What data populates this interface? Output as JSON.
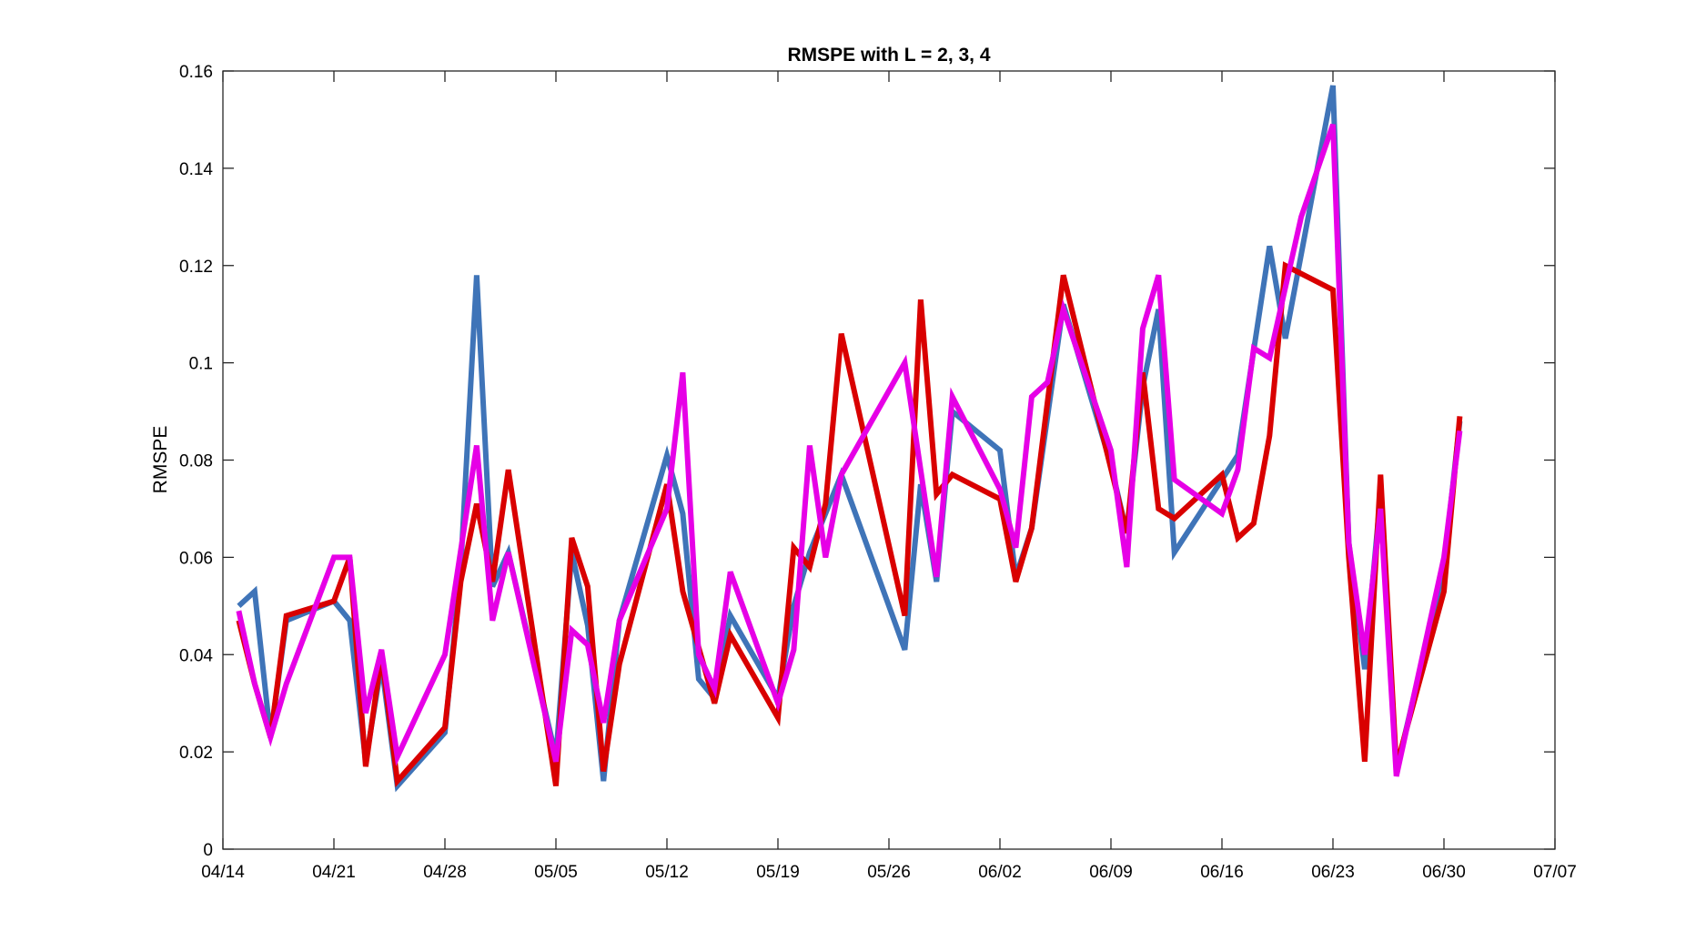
{
  "chart_data": {
    "type": "line",
    "title": "RMSPE with L = 2, 3, 4",
    "xlabel": "",
    "ylabel": "RMSPE",
    "x_domain": [
      "2020-04-14",
      "2020-07-07"
    ],
    "ylim": [
      0,
      0.16
    ],
    "x_tick_labels": [
      "04/14",
      "04/21",
      "04/28",
      "05/05",
      "05/12",
      "05/19",
      "05/26",
      "06/02",
      "06/09",
      "06/16",
      "06/23",
      "06/30",
      "07/07"
    ],
    "y_ticks": [
      0,
      0.02,
      0.04,
      0.06,
      0.08,
      0.1,
      0.12,
      0.14,
      0.16
    ],
    "y_tick_labels": [
      "0",
      "0.02",
      "0.04",
      "0.06",
      "0.08",
      "0.1",
      "0.12",
      "0.14",
      "0.16"
    ],
    "grid": false,
    "legend": "none",
    "series": [
      {
        "color": "#3f74b8",
        "points": [
          [
            "2020-04-15",
            0.05
          ],
          [
            "2020-04-16",
            0.053
          ],
          [
            "2020-04-17",
            0.023
          ],
          [
            "2020-04-18",
            0.047
          ],
          [
            "2020-04-21",
            0.051
          ],
          [
            "2020-04-22",
            0.047
          ],
          [
            "2020-04-23",
            0.018
          ],
          [
            "2020-04-24",
            0.038
          ],
          [
            "2020-04-25",
            0.013
          ],
          [
            "2020-04-28",
            0.024
          ],
          [
            "2020-04-29",
            0.058
          ],
          [
            "2020-04-30",
            0.118
          ],
          [
            "2020-05-01",
            0.054
          ],
          [
            "2020-05-02",
            0.061
          ],
          [
            "2020-05-05",
            0.019
          ],
          [
            "2020-05-06",
            0.061
          ],
          [
            "2020-05-07",
            0.046
          ],
          [
            "2020-05-08",
            0.014
          ],
          [
            "2020-05-09",
            0.047
          ],
          [
            "2020-05-12",
            0.081
          ],
          [
            "2020-05-13",
            0.069
          ],
          [
            "2020-05-14",
            0.035
          ],
          [
            "2020-05-15",
            0.031
          ],
          [
            "2020-05-16",
            0.048
          ],
          [
            "2020-05-19",
            0.031
          ],
          [
            "2020-05-20",
            0.05
          ],
          [
            "2020-05-21",
            0.061
          ],
          [
            "2020-05-23",
            0.077
          ],
          [
            "2020-05-27",
            0.041
          ],
          [
            "2020-05-28",
            0.075
          ],
          [
            "2020-05-29",
            0.055
          ],
          [
            "2020-05-30",
            0.09
          ],
          [
            "2020-06-02",
            0.082
          ],
          [
            "2020-06-03",
            0.056
          ],
          [
            "2020-06-04",
            0.066
          ],
          [
            "2020-06-06",
            0.112
          ],
          [
            "2020-06-09",
            0.079
          ],
          [
            "2020-06-10",
            0.065
          ],
          [
            "2020-06-11",
            0.095
          ],
          [
            "2020-06-12",
            0.111
          ],
          [
            "2020-06-13",
            0.061
          ],
          [
            "2020-06-17",
            0.081
          ],
          [
            "2020-06-19",
            0.124
          ],
          [
            "2020-06-20",
            0.105
          ],
          [
            "2020-06-23",
            0.157
          ],
          [
            "2020-06-24",
            0.063
          ],
          [
            "2020-06-25",
            0.037
          ],
          [
            "2020-06-26",
            0.073
          ],
          [
            "2020-06-27",
            0.016
          ],
          [
            "2020-06-30",
            0.058
          ],
          [
            "2020-07-01",
            0.088
          ]
        ]
      },
      {
        "color": "#d90000",
        "points": [
          [
            "2020-04-15",
            0.047
          ],
          [
            "2020-04-16",
            0.034
          ],
          [
            "2020-04-17",
            0.023
          ],
          [
            "2020-04-18",
            0.048
          ],
          [
            "2020-04-21",
            0.051
          ],
          [
            "2020-04-22",
            0.06
          ],
          [
            "2020-04-23",
            0.017
          ],
          [
            "2020-04-24",
            0.04
          ],
          [
            "2020-04-25",
            0.014
          ],
          [
            "2020-04-28",
            0.025
          ],
          [
            "2020-04-29",
            0.055
          ],
          [
            "2020-04-30",
            0.071
          ],
          [
            "2020-05-01",
            0.055
          ],
          [
            "2020-05-02",
            0.078
          ],
          [
            "2020-05-05",
            0.013
          ],
          [
            "2020-05-06",
            0.064
          ],
          [
            "2020-05-07",
            0.054
          ],
          [
            "2020-05-08",
            0.016
          ],
          [
            "2020-05-09",
            0.038
          ],
          [
            "2020-05-12",
            0.075
          ],
          [
            "2020-05-13",
            0.053
          ],
          [
            "2020-05-15",
            0.03
          ],
          [
            "2020-05-16",
            0.044
          ],
          [
            "2020-05-19",
            0.027
          ],
          [
            "2020-05-20",
            0.062
          ],
          [
            "2020-05-21",
            0.058
          ],
          [
            "2020-05-22",
            0.071
          ],
          [
            "2020-05-23",
            0.106
          ],
          [
            "2020-05-27",
            0.048
          ],
          [
            "2020-05-28",
            0.113
          ],
          [
            "2020-05-29",
            0.073
          ],
          [
            "2020-05-30",
            0.077
          ],
          [
            "2020-06-02",
            0.072
          ],
          [
            "2020-06-03",
            0.055
          ],
          [
            "2020-06-04",
            0.066
          ],
          [
            "2020-06-06",
            0.118
          ],
          [
            "2020-06-10",
            0.065
          ],
          [
            "2020-06-11",
            0.098
          ],
          [
            "2020-06-12",
            0.07
          ],
          [
            "2020-06-13",
            0.068
          ],
          [
            "2020-06-16",
            0.077
          ],
          [
            "2020-06-17",
            0.064
          ],
          [
            "2020-06-18",
            0.067
          ],
          [
            "2020-06-19",
            0.085
          ],
          [
            "2020-06-20",
            0.12
          ],
          [
            "2020-06-23",
            0.115
          ],
          [
            "2020-06-24",
            0.06
          ],
          [
            "2020-06-25",
            0.018
          ],
          [
            "2020-06-26",
            0.077
          ],
          [
            "2020-06-27",
            0.017
          ],
          [
            "2020-06-30",
            0.053
          ],
          [
            "2020-07-01",
            0.089
          ]
        ]
      },
      {
        "color": "#e600e6",
        "points": [
          [
            "2020-04-15",
            0.049
          ],
          [
            "2020-04-16",
            0.034
          ],
          [
            "2020-04-17",
            0.023
          ],
          [
            "2020-04-18",
            0.034
          ],
          [
            "2020-04-21",
            0.06
          ],
          [
            "2020-04-22",
            0.06
          ],
          [
            "2020-04-23",
            0.028
          ],
          [
            "2020-04-24",
            0.041
          ],
          [
            "2020-04-25",
            0.019
          ],
          [
            "2020-04-28",
            0.04
          ],
          [
            "2020-04-30",
            0.083
          ],
          [
            "2020-05-01",
            0.047
          ],
          [
            "2020-05-02",
            0.061
          ],
          [
            "2020-05-05",
            0.018
          ],
          [
            "2020-05-06",
            0.045
          ],
          [
            "2020-05-07",
            0.042
          ],
          [
            "2020-05-08",
            0.026
          ],
          [
            "2020-05-09",
            0.047
          ],
          [
            "2020-05-12",
            0.07
          ],
          [
            "2020-05-13",
            0.098
          ],
          [
            "2020-05-14",
            0.04
          ],
          [
            "2020-05-15",
            0.033
          ],
          [
            "2020-05-16",
            0.057
          ],
          [
            "2020-05-19",
            0.03
          ],
          [
            "2020-05-20",
            0.041
          ],
          [
            "2020-05-21",
            0.083
          ],
          [
            "2020-05-22",
            0.06
          ],
          [
            "2020-05-23",
            0.077
          ],
          [
            "2020-05-27",
            0.1
          ],
          [
            "2020-05-29",
            0.056
          ],
          [
            "2020-05-30",
            0.093
          ],
          [
            "2020-06-02",
            0.074
          ],
          [
            "2020-06-03",
            0.062
          ],
          [
            "2020-06-04",
            0.093
          ],
          [
            "2020-06-05",
            0.096
          ],
          [
            "2020-06-06",
            0.111
          ],
          [
            "2020-06-09",
            0.082
          ],
          [
            "2020-06-10",
            0.058
          ],
          [
            "2020-06-11",
            0.107
          ],
          [
            "2020-06-12",
            0.118
          ],
          [
            "2020-06-13",
            0.076
          ],
          [
            "2020-06-16",
            0.069
          ],
          [
            "2020-06-17",
            0.078
          ],
          [
            "2020-06-18",
            0.103
          ],
          [
            "2020-06-19",
            0.101
          ],
          [
            "2020-06-21",
            0.13
          ],
          [
            "2020-06-23",
            0.149
          ],
          [
            "2020-06-24",
            0.063
          ],
          [
            "2020-06-25",
            0.04
          ],
          [
            "2020-06-26",
            0.07
          ],
          [
            "2020-06-27",
            0.015
          ],
          [
            "2020-06-30",
            0.06
          ],
          [
            "2020-07-01",
            0.086
          ]
        ]
      }
    ]
  }
}
